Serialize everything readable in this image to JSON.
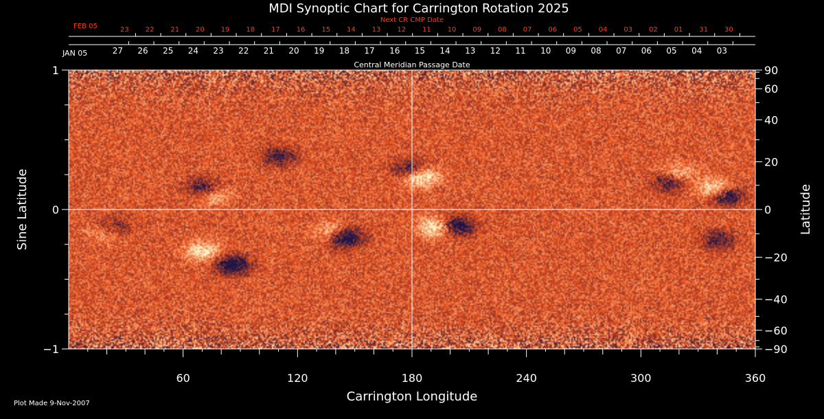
{
  "colors": {
    "background": "#000000",
    "text": "#ffffff",
    "next_dates": "#ff3b1a",
    "field_base": "#e8501c",
    "field_positive": "#fff6c8",
    "field_negative": "#1a1448"
  },
  "chart_data": {
    "type": "heatmap",
    "title": "MDI Synoptic Chart for Carrington Rotation 2025",
    "xlabel": "Carrington Longitude",
    "ylabel_left": "Sine Latitude",
    "ylabel_right": "Latitude",
    "xlim": [
      0,
      360
    ],
    "ylim": [
      -1,
      1
    ],
    "grid": "center crosshair at longitude 180 and latitude 0",
    "x_ticks": [
      60,
      120,
      180,
      240,
      300,
      360
    ],
    "y_ticks_left": [
      -1,
      0,
      1
    ],
    "y_tick_labels_left": [
      "−1",
      "0",
      "1"
    ],
    "y_ticks_right": [
      -90,
      -60,
      -40,
      -20,
      0,
      20,
      40,
      60,
      90
    ],
    "y_tick_labels_right": [
      "−90",
      "−60",
      "−40",
      "−20",
      "0",
      "20",
      "40",
      "60",
      "90"
    ],
    "cmp_axis": {
      "label": "Central Meridian Passage Date",
      "month_label": "JAN 05",
      "dates": [
        "27",
        "26",
        "25",
        "24",
        "23",
        "22",
        "21",
        "20",
        "19",
        "18",
        "17",
        "16",
        "15",
        "14",
        "13",
        "12",
        "11",
        "10",
        "09",
        "08",
        "07",
        "06",
        "05",
        "04",
        "03"
      ],
      "first_date_longitude": 25.7,
      "longitude_step": 13.2
    },
    "next_cmp_axis": {
      "label": "Next CR CMP Date",
      "month_label": "FEB 05",
      "dates": [
        "23",
        "22",
        "21",
        "20",
        "19",
        "18",
        "17",
        "16",
        "15",
        "14",
        "13",
        "12",
        "11",
        "10",
        "09",
        "08",
        "07",
        "06",
        "05",
        "04",
        "03",
        "02",
        "01",
        "31",
        "30"
      ],
      "first_date_longitude": 29.3,
      "longitude_step": 13.2
    },
    "active_regions": [
      {
        "lon": 184,
        "lat": 0.24,
        "polarity": "positive",
        "strength": 1.0
      },
      {
        "lon": 180,
        "lat": 0.28,
        "polarity": "negative",
        "strength": 0.8
      },
      {
        "lon": 193,
        "lat": -0.13,
        "polarity": "positive",
        "strength": 0.8
      },
      {
        "lon": 203,
        "lat": -0.12,
        "polarity": "negative",
        "strength": 0.9
      },
      {
        "lon": 344,
        "lat": 0.1,
        "polarity": "negative",
        "strength": 0.9
      },
      {
        "lon": 339,
        "lat": 0.14,
        "polarity": "positive",
        "strength": 0.8
      },
      {
        "lon": 320,
        "lat": 0.25,
        "polarity": "positive",
        "strength": 0.6
      },
      {
        "lon": 316,
        "lat": 0.2,
        "polarity": "negative",
        "strength": 0.7
      },
      {
        "lon": 145,
        "lat": -0.2,
        "polarity": "negative",
        "strength": 0.9
      },
      {
        "lon": 138,
        "lat": -0.16,
        "polarity": "positive",
        "strength": 0.5
      },
      {
        "lon": 86,
        "lat": -0.4,
        "polarity": "negative",
        "strength": 0.8
      },
      {
        "lon": 70,
        "lat": -0.3,
        "polarity": "positive",
        "strength": 0.6
      },
      {
        "lon": 23,
        "lat": -0.13,
        "polarity": "negative",
        "strength": 0.6
      },
      {
        "lon": 20,
        "lat": -0.16,
        "polarity": "positive",
        "strength": 0.5
      },
      {
        "lon": 71,
        "lat": 0.15,
        "polarity": "negative",
        "strength": 0.6
      },
      {
        "lon": 76,
        "lat": 0.1,
        "polarity": "positive",
        "strength": 0.5
      },
      {
        "lon": 340,
        "lat": -0.22,
        "polarity": "negative",
        "strength": 0.5
      },
      {
        "lon": 110,
        "lat": 0.38,
        "polarity": "negative",
        "strength": 0.5
      }
    ]
  },
  "footer": {
    "plot_made": "Plot Made  9-Nov-2007"
  }
}
